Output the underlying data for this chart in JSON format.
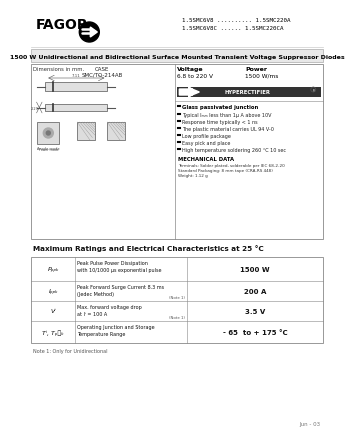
{
  "title_line1": "1.5SMC6V8 .......... 1.5SMC220A",
  "title_line2": "1.5SMC6V8C ...... 1.5SMC220CA",
  "main_title": "1500 W Unidirectional and Bidirectional Surface Mounted Transient Voltage Suppressor Diodes",
  "fagor_text": "FAGOR",
  "features_title": "Glass passivated junction",
  "features": [
    "Typical Iₘₘ less than 1μ A above 10V",
    "Response time typically < 1 ns",
    "The plastic material carries UL 94 V-0",
    "Low profile package",
    "Easy pick and place",
    "High temperature soldering 260 °C 10 sec"
  ],
  "mech_title": "MECHANICAL DATA",
  "mech_line1": "Terminals: Solder plated, solderable per IEC 68-2-20",
  "mech_line2": "Standard Packaging: 8 mm tape (CRA-RS 448)",
  "mech_line3": "Weight: 1.12 g",
  "table_title": "Maximum Ratings and Electrical Characteristics at 25 °C",
  "rows": [
    {
      "symbol": "Pₚₚₖ",
      "desc1": "Peak Pulse Power Dissipation",
      "desc2": "with 10/1000 μs exponential pulse",
      "note": "",
      "value": "1500 W"
    },
    {
      "symbol": "Iₚₚₖ",
      "desc1": "Peak Forward Surge Current 8.3 ms",
      "desc2": "(Jedec Method)",
      "note": "(Note 1)",
      "value": "200 A"
    },
    {
      "symbol": "Vⁱ",
      "desc1": "Max. forward voltage drop",
      "desc2": "at Iⁱ = 100 A",
      "note": "(Note 1)",
      "value": "3.5 V"
    },
    {
      "symbol": "Tⁱ, Tₚ₞ₖ",
      "desc1": "Operating Junction and Storage",
      "desc2": "Temperature Range",
      "note": "",
      "value": "- 65  to + 175 °C"
    }
  ],
  "note": "Note 1: Only for Unidirectional",
  "date": "Jun - 03"
}
